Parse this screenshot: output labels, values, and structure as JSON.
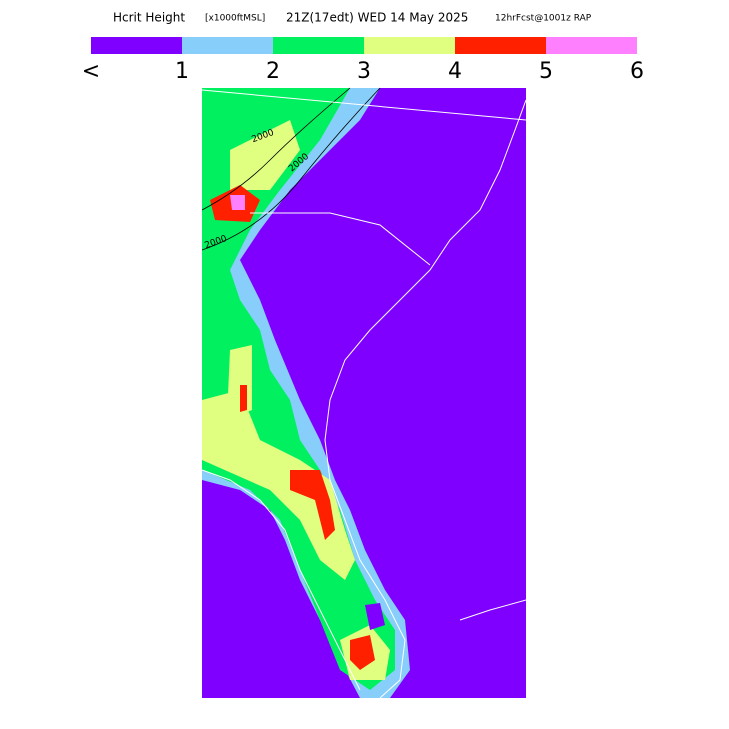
{
  "header": {
    "parts": [
      "Hcrit Height",
      "[x1000ftMSL]",
      "21Z(17edt) WED 14 May 2025",
      "12hrFcst@1001z RAP"
    ]
  },
  "colorbar": {
    "colors": [
      "#7f00ff",
      "#87cefa",
      "#00f060",
      "#e0ff80",
      "#ff2000",
      "#ff80ff"
    ],
    "labels": [
      "<",
      "1",
      "2",
      "3",
      "4",
      "5",
      "6"
    ]
  },
  "map": {
    "contour_labels": [
      "2000",
      "2000",
      "2000"
    ]
  }
}
